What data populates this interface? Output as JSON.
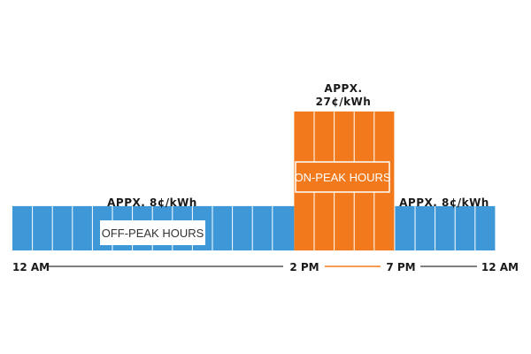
{
  "colors": {
    "off_peak": "#3E98D8",
    "on_peak": "#F27A1C",
    "divider": "#ffffff",
    "axis_line": "#333333",
    "text": "#1a1a1a"
  },
  "off_peak": {
    "price_label": "APPX. 8¢/kWh",
    "box_label": "OFF-PEAK HOURS",
    "evening_price_label": "APPX. 8¢/kWh"
  },
  "on_peak": {
    "price_label_line1": "APPX.",
    "price_label_line2": "27¢/kWh",
    "box_label": "ON-PEAK HOURS"
  },
  "timeline": {
    "start_label": "12 AM",
    "on_peak_start_label": "2 PM",
    "on_peak_end_label": "7 PM",
    "end_label": "12 AM"
  },
  "structure": {
    "off_peak_morning_segments": 14,
    "on_peak_segments": 5,
    "off_peak_evening_segments": 5,
    "off_peak_relative_height": 0.3,
    "on_peak_relative_height": 1.0
  }
}
